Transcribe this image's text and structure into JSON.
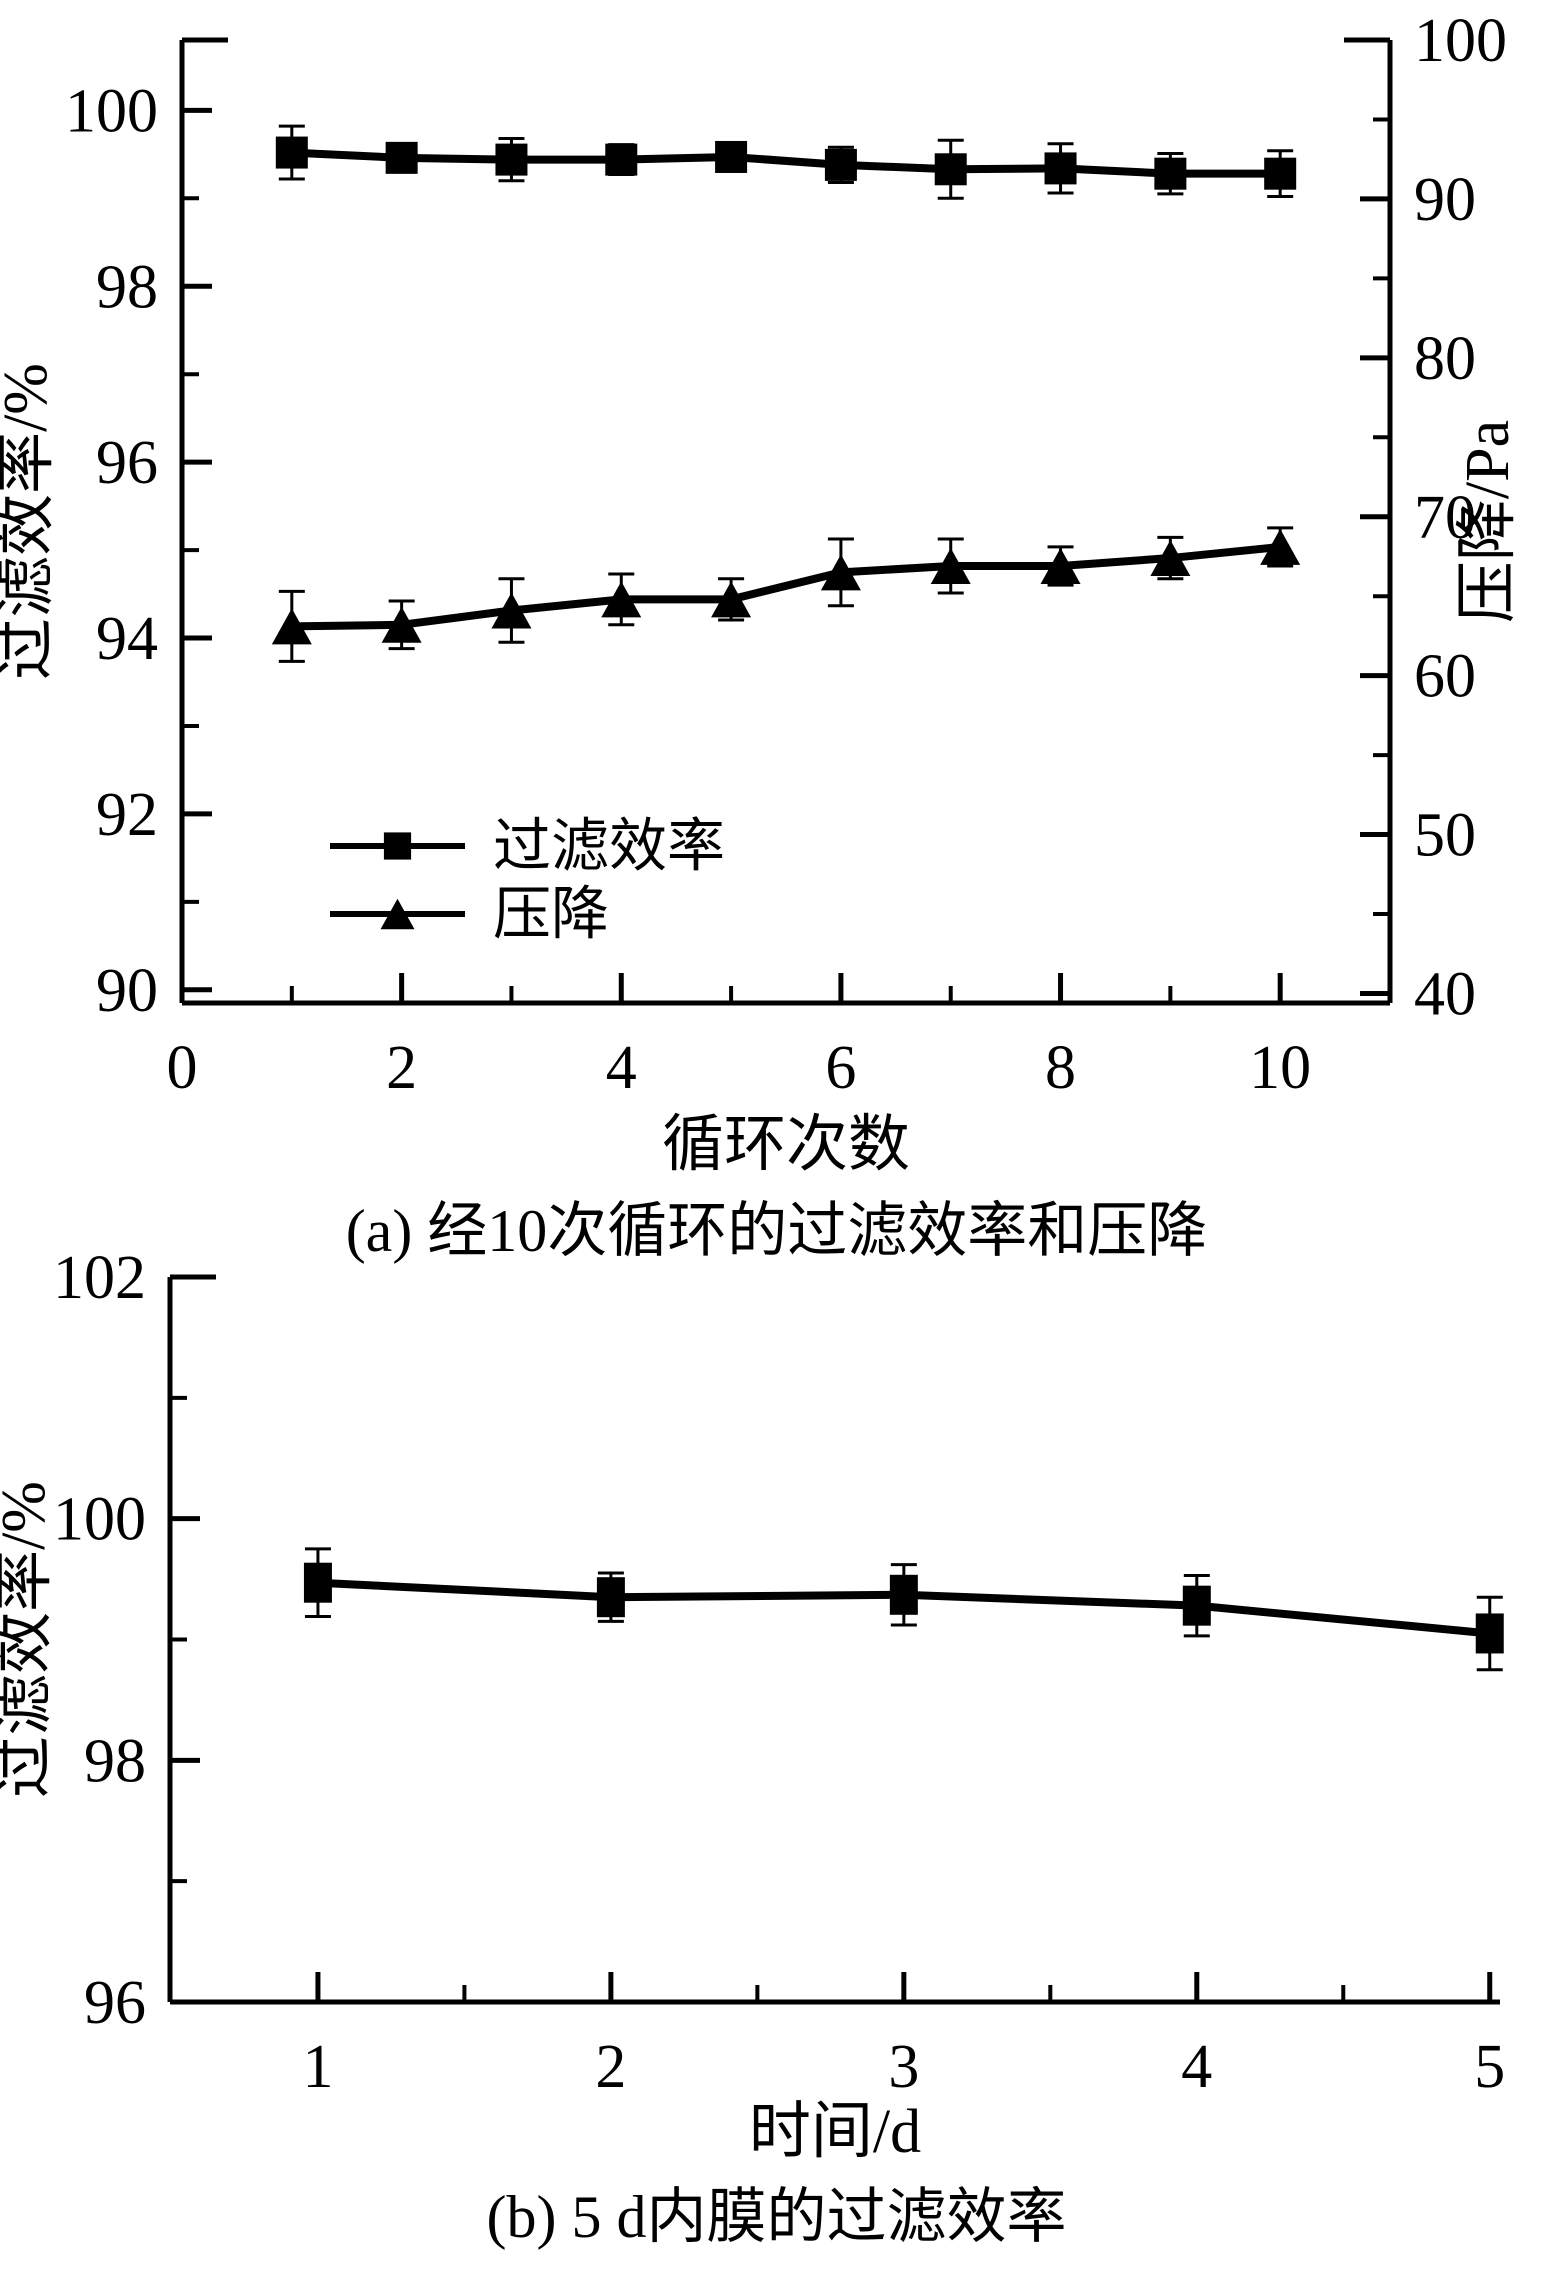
{
  "figure": {
    "background": "#ffffff",
    "ink_color": "#000000"
  },
  "chart_data": [
    {
      "id": "a",
      "type": "line",
      "caption": "(a) 经10次循环的过滤效率和压降",
      "xlabel": "循环次数",
      "ylabel_left": "过滤效率/%",
      "ylabel_right": "压降/Pa",
      "x_axis": {
        "range": [
          0,
          11
        ],
        "major_ticks": [
          0,
          2,
          4,
          6,
          8,
          10
        ],
        "minor_ticks": [
          1,
          3,
          5,
          7,
          9
        ]
      },
      "y_left": {
        "range": [
          89.85,
          100.8
        ],
        "major_ticks": [
          90,
          92,
          94,
          96,
          98,
          100
        ],
        "minor_ticks": [
          91,
          93,
          95,
          97,
          99
        ]
      },
      "y_right": {
        "range": [
          39.4,
          100
        ],
        "major_ticks": [
          40,
          50,
          60,
          70,
          80,
          90,
          100
        ],
        "minor_ticks": [
          45,
          55,
          65,
          75,
          85,
          95
        ]
      },
      "grid": false,
      "legend": {
        "position": "inside-lower-left"
      },
      "series": [
        {
          "key": "filtration-efficiency",
          "name": "过滤效率",
          "axis": "left",
          "marker": "square",
          "x": [
            1,
            2,
            3,
            4,
            5,
            6,
            7,
            8,
            9,
            10
          ],
          "y": [
            99.52,
            99.46,
            99.44,
            99.44,
            99.47,
            99.38,
            99.33,
            99.34,
            99.28,
            99.28
          ],
          "err": [
            0.3,
            0.16,
            0.24,
            0.17,
            0.14,
            0.2,
            0.33,
            0.28,
            0.23,
            0.26
          ]
        },
        {
          "key": "pressure-drop",
          "name": "压降",
          "axis": "right",
          "marker": "triangle",
          "x": [
            1,
            2,
            3,
            4,
            5,
            6,
            7,
            8,
            9,
            10
          ],
          "y": [
            63.1,
            63.2,
            64.1,
            64.8,
            64.8,
            66.5,
            66.9,
            66.9,
            67.4,
            68.1
          ],
          "err": [
            2.2,
            1.5,
            2.0,
            1.6,
            1.3,
            2.1,
            1.7,
            1.2,
            1.3,
            1.2
          ]
        }
      ]
    },
    {
      "id": "b",
      "type": "line",
      "caption": "(b) 5 d内膜的过滤效率",
      "xlabel": "时间/d",
      "ylabel_left": "过滤效率/%",
      "x_axis": {
        "range": [
          0.495,
          5.035
        ],
        "major_ticks": [
          1,
          2,
          3,
          4,
          5
        ],
        "minor_ticks": [
          1.5,
          2.5,
          3.5,
          4.5
        ]
      },
      "y_left": {
        "range": [
          96,
          102
        ],
        "major_ticks": [
          96,
          98,
          100,
          102
        ],
        "minor_ticks": [
          97,
          99,
          101
        ]
      },
      "grid": false,
      "series": [
        {
          "key": "filtration-efficiency",
          "name": "过滤效率",
          "axis": "left",
          "marker": "square",
          "x": [
            1,
            2,
            3,
            4,
            5
          ],
          "y": [
            99.47,
            99.35,
            99.37,
            99.28,
            99.05
          ],
          "err": [
            0.28,
            0.2,
            0.25,
            0.25,
            0.3
          ]
        }
      ]
    }
  ]
}
